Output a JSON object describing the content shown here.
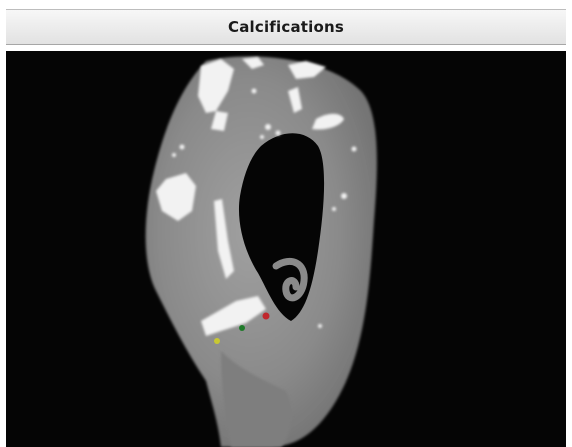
{
  "panel": {
    "title": "Calcifications"
  },
  "viewport": {
    "icon": "3d-vessel-render-icon",
    "background_color": "#050505",
    "vessel_color": "#8a8a8a",
    "calcification_color": "#f2f2f2",
    "marker_colors": {
      "red": "#c0282d",
      "green": "#1f7a2a",
      "yellow": "#c8c832"
    }
  }
}
